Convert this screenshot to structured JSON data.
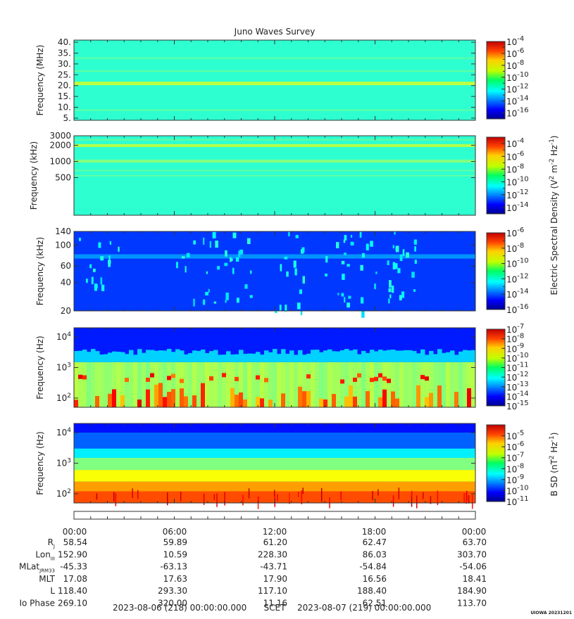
{
  "title": "Juno Waves Survey",
  "panels": [
    {
      "ylabel": "Frequency (MHz)",
      "yscale": "linear",
      "ylim": [
        4,
        41
      ],
      "yticks": [
        {
          "v": 5,
          "label": "5."
        },
        {
          "v": 10,
          "label": "10."
        },
        {
          "v": 15,
          "label": "15."
        },
        {
          "v": 20,
          "label": "20."
        },
        {
          "v": 25,
          "label": "25."
        },
        {
          "v": 30,
          "label": "30."
        },
        {
          "v": 35,
          "label": "35."
        },
        {
          "v": 40,
          "label": "40."
        }
      ],
      "colorbar": {
        "min_exp": -17,
        "max_exp": -4,
        "ticks": [
          -4,
          -6,
          -8,
          -10,
          -12,
          -14,
          -16
        ]
      },
      "background_level": 0.42
    },
    {
      "ylabel": "Frequency (kHz)",
      "yscale": "log",
      "ylim": [
        100,
        3000
      ],
      "yticks": [
        {
          "v": 500,
          "label": "500"
        },
        {
          "v": 1000,
          "label": "1000"
        },
        {
          "v": 2000,
          "label": "2000"
        },
        {
          "v": 3000,
          "label": "3000"
        }
      ],
      "colorbar": {
        "min_exp": -15,
        "max_exp": -3,
        "ticks": [
          -4,
          -6,
          -8,
          -10,
          -12,
          -14
        ]
      },
      "background_level": 0.42
    },
    {
      "ylabel": "Frequency (kHz)",
      "yscale": "log",
      "ylim": [
        20,
        140
      ],
      "yticks": [
        {
          "v": 20,
          "label": "20"
        },
        {
          "v": 40,
          "label": "40"
        },
        {
          "v": 60,
          "label": "60"
        },
        {
          "v": 100,
          "label": "100"
        },
        {
          "v": 140,
          "label": "140"
        }
      ],
      "colorbar": {
        "min_exp": -16,
        "max_exp": -6,
        "ticks": [
          -6,
          -8,
          -10,
          -12,
          -14,
          -16
        ]
      },
      "background_level": 0.18
    },
    {
      "ylabel": "Frequency (Hz)",
      "yscale": "log",
      "ylim": [
        50,
        20000
      ],
      "yticks": [
        {
          "v": 100,
          "label": "10",
          "sup": "2"
        },
        {
          "v": 1000,
          "label": "10",
          "sup": "3"
        },
        {
          "v": 10000,
          "label": "10",
          "sup": "4"
        }
      ],
      "colorbar": {
        "min_exp": -15,
        "max_exp": -7,
        "ticks": [
          -7,
          -8,
          -9,
          -10,
          -11,
          -12,
          -13,
          -14,
          -15
        ]
      },
      "background_level": 0.15
    },
    {
      "ylabel": "Frequency (Hz)",
      "yscale": "log",
      "ylim": [
        50,
        20000
      ],
      "yticks": [
        {
          "v": 100,
          "label": "10",
          "sup": "2"
        },
        {
          "v": 1000,
          "label": "10",
          "sup": "3"
        },
        {
          "v": 10000,
          "label": "10",
          "sup": "4"
        }
      ],
      "colorbar": {
        "min_exp": -11,
        "max_exp": -4,
        "ticks": [
          -5,
          -6,
          -7,
          -8,
          -9,
          -10,
          -11
        ]
      },
      "background_level": 0.3
    }
  ],
  "colorbar_labels": {
    "electric": {
      "text": "Electric Spectral Density (V",
      "sup1": "2",
      "mid": " m",
      "sup2": "-2",
      "mid2": " Hz",
      "sup3": "-1",
      "end": ")"
    },
    "magnetic": {
      "text": "B SD (nT",
      "sup1": "2",
      "mid": " Hz",
      "sup2": "-1",
      "end": ")"
    }
  },
  "time_ticks": [
    "00:00",
    "06:00",
    "12:00",
    "18:00",
    "00:00"
  ],
  "ephemeris": [
    {
      "label": "R",
      "sub": "J",
      "values": [
        "58.54",
        "59.89",
        "61.20",
        "62.47",
        "63.70"
      ]
    },
    {
      "label": "Lon",
      "sub": "III",
      "values": [
        "152.90",
        "10.59",
        "228.30",
        "86.03",
        "303.70"
      ]
    },
    {
      "label": "MLat",
      "sub": "JRM33",
      "values": [
        "-45.33",
        "-63.13",
        "-43.71",
        "-54.84",
        "-54.06"
      ]
    },
    {
      "label": "MLT",
      "sub": "",
      "values": [
        "17.08",
        "17.63",
        "17.90",
        "16.56",
        "18.41"
      ]
    },
    {
      "label": "L",
      "sub": "",
      "values": [
        "118.40",
        "293.30",
        "117.10",
        "188.40",
        "184.90"
      ]
    },
    {
      "label": "Io Phase",
      "sub": "",
      "values": [
        "269.10",
        "320.00",
        "11.16",
        "62.51",
        "113.70"
      ]
    }
  ],
  "footer": {
    "start": "2023-08-06 (218) 00:00:00.000",
    "mid": "SCET",
    "end": "2023-08-07 (219) 00:00:00.000",
    "credit": "UIOWA 20231201"
  }
}
